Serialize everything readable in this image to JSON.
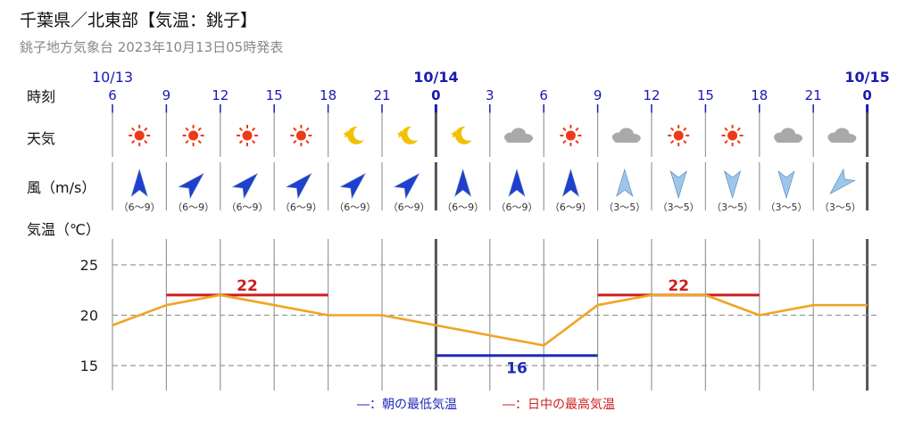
{
  "header": {
    "title": "千葉県／北東部【気温：銚子】",
    "subtitle": "銚子地方気象台 2023年10月13日05時発表"
  },
  "row_labels": {
    "time": "時刻",
    "weather": "天気",
    "wind": "風（m/s）",
    "temp": "気温（℃）"
  },
  "colors": {
    "temp_line": "#f0a424",
    "max_line": "#cc1f1f",
    "min_line": "#1f2ab8",
    "date_label": "#1a1ab0",
    "hour_label": "#1a1ab0",
    "grid": "#9a9a9a",
    "wind_strong": "#1f3fd0",
    "wind_weak": "#9cc6ec"
  },
  "chart_data": {
    "type": "line",
    "dates": [
      {
        "label": "10/13",
        "index": 0
      },
      {
        "label": "10/14",
        "index": 6
      },
      {
        "label": "10/15",
        "index": 14
      }
    ],
    "hours": [
      "6",
      "9",
      "12",
      "15",
      "18",
      "21",
      "0",
      "3",
      "6",
      "9",
      "12",
      "15",
      "18",
      "21",
      "0"
    ],
    "weather": [
      "sun-icon",
      "sun-icon",
      "sun-icon",
      "sun-icon",
      "moon-icon",
      "moon-icon",
      "moon-icon",
      "cloud-icon",
      "sun-icon",
      "cloud-icon",
      "sun-icon",
      "sun-icon",
      "cloud-icon",
      "cloud-icon"
    ],
    "wind": [
      {
        "dir": 180,
        "speed": "（6～9）",
        "strength": "strong"
      },
      {
        "dir": 225,
        "speed": "（6～9）",
        "strength": "strong"
      },
      {
        "dir": 225,
        "speed": "（6～9）",
        "strength": "strong"
      },
      {
        "dir": 225,
        "speed": "（6～9）",
        "strength": "strong"
      },
      {
        "dir": 225,
        "speed": "（6～9）",
        "strength": "strong"
      },
      {
        "dir": 225,
        "speed": "（6～9）",
        "strength": "strong"
      },
      {
        "dir": 180,
        "speed": "（6～9）",
        "strength": "strong"
      },
      {
        "dir": 180,
        "speed": "（6～9）",
        "strength": "strong"
      },
      {
        "dir": 180,
        "speed": "（6～9）",
        "strength": "strong"
      },
      {
        "dir": 180,
        "speed": "（3～5）",
        "strength": "weak"
      },
      {
        "dir": 0,
        "speed": "（3～5）",
        "strength": "weak"
      },
      {
        "dir": 0,
        "speed": "（3～5）",
        "strength": "weak"
      },
      {
        "dir": 0,
        "speed": "（3～5）",
        "strength": "weak"
      },
      {
        "dir": 45,
        "speed": "（3～5）",
        "strength": "weak"
      }
    ],
    "temperature": {
      "x_index": [
        0,
        1,
        2,
        3,
        4,
        5,
        6,
        7,
        8,
        9,
        10,
        11,
        12,
        13,
        14
      ],
      "values": [
        19,
        21,
        22,
        21,
        20,
        20,
        19,
        18,
        17,
        21,
        22,
        22,
        20,
        21,
        21
      ]
    },
    "y_ticks": [
      25,
      20,
      15
    ],
    "ylim": [
      12.5,
      27.5
    ],
    "max_temps": [
      {
        "value": 22,
        "label": "22",
        "from": 1,
        "to": 4
      },
      {
        "value": 22,
        "label": "22",
        "from": 9,
        "to": 12
      }
    ],
    "min_temps": [
      {
        "value": 16,
        "label": "16",
        "from": 6,
        "to": 9
      }
    ],
    "legend": {
      "min": "―：朝の最低気温",
      "max": "―：日中の最高気温",
      "position": "bottom-center"
    }
  }
}
